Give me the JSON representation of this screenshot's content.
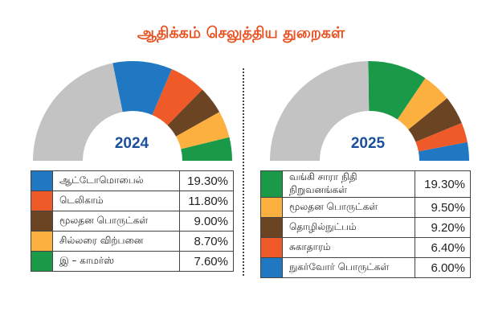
{
  "title": "ஆதிக்கம் செலுத்திய துறைகள்",
  "chart_data": [
    {
      "type": "pie",
      "subtype": "half-donut",
      "center_label": "2024",
      "total": 100,
      "remainder_color": "#c3c3c3",
      "slices": [
        {
          "label": "ஆட்டோமொபைல்",
          "value": 19.3,
          "display": "19.30%",
          "color": "#1f78c1"
        },
        {
          "label": "டெலிகாம்",
          "value": 11.8,
          "display": "11.80%",
          "color": "#f05a28"
        },
        {
          "label": "மூலதன பொருட்கள்",
          "value": 9.0,
          "display": "9.00%",
          "color": "#6b4423"
        },
        {
          "label": "சில்லரை விற்பனை",
          "value": 8.7,
          "display": "8.70%",
          "color": "#fbb040"
        },
        {
          "label": "இ – காமர்ஸ்",
          "value": 7.6,
          "display": "7.60%",
          "color": "#1a9a48"
        }
      ]
    },
    {
      "type": "pie",
      "subtype": "half-donut",
      "center_label": "2025",
      "total": 100,
      "remainder_color": "#c3c3c3",
      "slices": [
        {
          "label": "வங்கி சாரா நிதி நிறுவனங்கள்",
          "value": 19.3,
          "display": "19.30%",
          "color": "#1a9a48"
        },
        {
          "label": "மூலதன பொருட்கள்",
          "value": 9.5,
          "display": "9.50%",
          "color": "#fbb040"
        },
        {
          "label": "தொழில்நுட்பம்",
          "value": 9.2,
          "display": "9.20%",
          "color": "#6b4423"
        },
        {
          "label": "சுகாதாரம்",
          "value": 6.4,
          "display": "6.40%",
          "color": "#f05a28"
        },
        {
          "label": "நுகர்வோர் பொருட்கள்",
          "value": 6.0,
          "display": "6.00%",
          "color": "#1f78c1"
        }
      ]
    }
  ]
}
